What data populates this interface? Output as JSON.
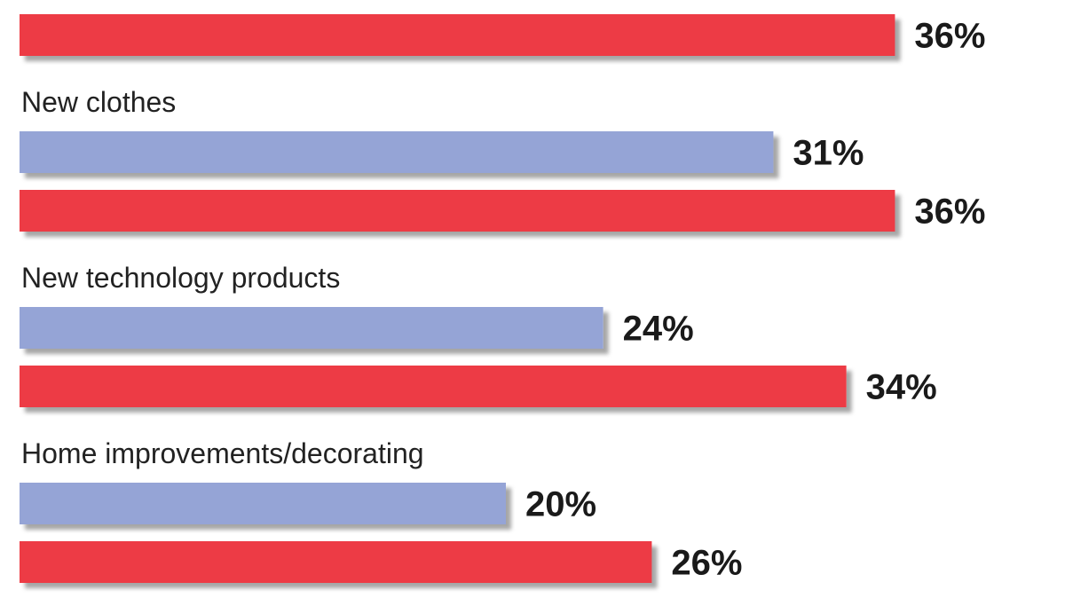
{
  "chart_data": {
    "type": "bar",
    "orientation": "horizontal",
    "title": "",
    "xlabel": "",
    "ylabel": "",
    "xlim": [
      0,
      36
    ],
    "grid": false,
    "legend": "none",
    "colors": [
      "#95a4d6",
      "#ed3a45"
    ],
    "value_suffix": "%",
    "categories": [
      "",
      "New clothes",
      "New technology products",
      "Home improvements/decorating"
    ],
    "series": [
      {
        "values": [
          null,
          31,
          24,
          20
        ]
      },
      {
        "values": [
          36,
          36,
          34,
          26
        ]
      }
    ]
  }
}
